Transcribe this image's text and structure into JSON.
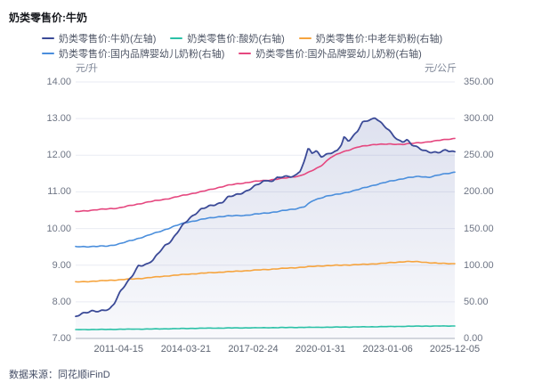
{
  "header": {
    "title": "奶类零售价:牛奶"
  },
  "footer": {
    "source": "数据来源：同花顺iFinD"
  },
  "chart_data": {
    "type": "line",
    "title": "奶类零售价:牛奶",
    "grid": true,
    "legend_position": "top",
    "x_range": [
      2009.42,
      2025.93
    ],
    "x_ticks": [
      {
        "label": "2011-04-15",
        "year": 2011.29
      },
      {
        "label": "2014-03-21",
        "year": 2014.22
      },
      {
        "label": "2017-02-24",
        "year": 2017.15
      },
      {
        "label": "2020-01-31",
        "year": 2020.08
      },
      {
        "label": "2023-01-06",
        "year": 2023.01
      },
      {
        "label": "2025-12-05",
        "year": 2025.93
      }
    ],
    "left_axis": {
      "unit": "元/升",
      "min": 7,
      "max": 14,
      "tick_labels": [
        "14.00",
        "13.00",
        "12.00",
        "11.00",
        "10.00",
        "9.00",
        "8.00",
        "7.00"
      ]
    },
    "right_axis": {
      "unit": "元/公斤",
      "min": 0,
      "max": 350,
      "tick_labels": [
        "350.00",
        "300.00",
        "250.00",
        "200.00",
        "150.00",
        "100.00",
        "50.00",
        "0.00"
      ]
    },
    "series": [
      {
        "name": "奶类零售价:牛奶(左轴)",
        "color": "#3b4a97",
        "axis": "left",
        "area": true,
        "noise": 0.028,
        "points": [
          [
            2009.42,
            7.58
          ],
          [
            2009.7,
            7.68
          ],
          [
            2010.1,
            7.76
          ],
          [
            2010.45,
            7.73
          ],
          [
            2010.9,
            7.8
          ],
          [
            2011.1,
            7.97
          ],
          [
            2011.37,
            8.29
          ],
          [
            2011.68,
            8.53
          ],
          [
            2011.88,
            8.7
          ],
          [
            2012.15,
            8.99
          ],
          [
            2012.55,
            9.03
          ],
          [
            2012.81,
            9.14
          ],
          [
            2013.05,
            9.35
          ],
          [
            2013.32,
            9.55
          ],
          [
            2013.59,
            9.67
          ],
          [
            2013.83,
            9.87
          ],
          [
            2014.1,
            10.1
          ],
          [
            2014.37,
            10.28
          ],
          [
            2014.61,
            10.4
          ],
          [
            2014.88,
            10.52
          ],
          [
            2015.3,
            10.62
          ],
          [
            2015.8,
            10.72
          ],
          [
            2016.05,
            10.85
          ],
          [
            2016.44,
            10.92
          ],
          [
            2016.83,
            11.02
          ],
          [
            2017.21,
            11.15
          ],
          [
            2017.6,
            11.28
          ],
          [
            2017.8,
            11.33
          ],
          [
            2018.0,
            11.28
          ],
          [
            2018.19,
            11.42
          ],
          [
            2018.4,
            11.36
          ],
          [
            2018.58,
            11.45
          ],
          [
            2018.8,
            11.38
          ],
          [
            2018.97,
            11.48
          ],
          [
            2019.2,
            11.55
          ],
          [
            2019.4,
            11.9
          ],
          [
            2019.55,
            12.18
          ],
          [
            2019.7,
            12.05
          ],
          [
            2019.9,
            12.12
          ],
          [
            2020.1,
            11.97
          ],
          [
            2020.3,
            12.02
          ],
          [
            2020.55,
            12.06
          ],
          [
            2020.8,
            12.1
          ],
          [
            2021.0,
            12.3
          ],
          [
            2021.11,
            12.5
          ],
          [
            2021.3,
            12.4
          ],
          [
            2021.5,
            12.52
          ],
          [
            2021.7,
            12.66
          ],
          [
            2021.9,
            12.88
          ],
          [
            2022.1,
            12.94
          ],
          [
            2022.3,
            12.98
          ],
          [
            2022.47,
            13.04
          ],
          [
            2022.6,
            12.96
          ],
          [
            2022.85,
            12.8
          ],
          [
            2023.1,
            12.64
          ],
          [
            2023.25,
            12.54
          ],
          [
            2023.45,
            12.42
          ],
          [
            2023.65,
            12.38
          ],
          [
            2023.85,
            12.42
          ],
          [
            2024.05,
            12.28
          ],
          [
            2024.4,
            12.18
          ],
          [
            2024.8,
            12.1
          ],
          [
            2025.2,
            12.06
          ],
          [
            2025.55,
            12.14
          ],
          [
            2025.93,
            12.1
          ]
        ]
      },
      {
        "name": "奶类零售价:酸奶(右轴)",
        "color": "#2bc1a7",
        "axis": "right",
        "area": false,
        "noise": 0.25,
        "points": [
          [
            2009.42,
            12.0
          ],
          [
            2011.29,
            12.5
          ],
          [
            2013.0,
            13.0
          ],
          [
            2015.0,
            14.0
          ],
          [
            2017.15,
            14.5
          ],
          [
            2019.0,
            15.0
          ],
          [
            2021.0,
            15.5
          ],
          [
            2023.0,
            16.2
          ],
          [
            2024.5,
            16.8
          ],
          [
            2025.93,
            17.0
          ]
        ]
      },
      {
        "name": "奶类零售价:中老年奶粉(右轴)",
        "color": "#f6a43e",
        "axis": "right",
        "area": false,
        "noise": 0.45,
        "points": [
          [
            2009.42,
            77.0
          ],
          [
            2010.5,
            78.5
          ],
          [
            2011.29,
            80.0
          ],
          [
            2012.3,
            82.0
          ],
          [
            2013.3,
            85.0
          ],
          [
            2014.22,
            87.5
          ],
          [
            2015.2,
            89.5
          ],
          [
            2016.05,
            91.0
          ],
          [
            2017.15,
            93.0
          ],
          [
            2018.2,
            95.0
          ],
          [
            2019.2,
            97.0
          ],
          [
            2020.08,
            99.0
          ],
          [
            2021.0,
            100.0
          ],
          [
            2022.0,
            101.0
          ],
          [
            2023.0,
            103.0
          ],
          [
            2023.8,
            105.0
          ],
          [
            2024.4,
            104.5
          ],
          [
            2025.2,
            102.5
          ],
          [
            2025.93,
            102.0
          ]
        ]
      },
      {
        "name": "奶类零售价:国内品牌婴幼儿奶粉(右轴)",
        "color": "#4a8edc",
        "axis": "right",
        "area": false,
        "noise": 0.6,
        "points": [
          [
            2009.42,
            125
          ],
          [
            2010.8,
            126
          ],
          [
            2011.3,
            129
          ],
          [
            2012.0,
            135
          ],
          [
            2012.5,
            140
          ],
          [
            2013.1,
            146
          ],
          [
            2013.7,
            153
          ],
          [
            2014.2,
            158
          ],
          [
            2015.0,
            163
          ],
          [
            2015.6,
            166
          ],
          [
            2016.0,
            167
          ],
          [
            2016.8,
            168
          ],
          [
            2017.4,
            170
          ],
          [
            2018.2,
            173
          ],
          [
            2019.0,
            177
          ],
          [
            2019.4,
            180
          ],
          [
            2019.75,
            188
          ],
          [
            2020.3,
            194
          ],
          [
            2020.9,
            197
          ],
          [
            2021.7,
            203
          ],
          [
            2022.5,
            210
          ],
          [
            2023.2,
            215
          ],
          [
            2023.8,
            219
          ],
          [
            2024.4,
            221
          ],
          [
            2024.8,
            220
          ],
          [
            2025.4,
            224
          ],
          [
            2025.93,
            227
          ]
        ]
      },
      {
        "name": "奶类零售价:国外品牌婴幼儿奶粉(右轴)",
        "color": "#e5477f",
        "axis": "right",
        "area": false,
        "noise": 0.55,
        "points": [
          [
            2009.42,
            173
          ],
          [
            2010.3,
            175.5
          ],
          [
            2011.29,
            178
          ],
          [
            2012.54,
            186
          ],
          [
            2013.5,
            191
          ],
          [
            2014.22,
            196
          ],
          [
            2015.0,
            201
          ],
          [
            2016.05,
            209
          ],
          [
            2017.15,
            214
          ],
          [
            2017.8,
            216
          ],
          [
            2018.58,
            219
          ],
          [
            2019.2,
            222
          ],
          [
            2019.6,
            227
          ],
          [
            2020.08,
            235
          ],
          [
            2020.53,
            247
          ],
          [
            2021.0,
            254
          ],
          [
            2021.69,
            261
          ],
          [
            2022.47,
            265
          ],
          [
            2023.0,
            265
          ],
          [
            2023.64,
            265
          ],
          [
            2024.42,
            267
          ],
          [
            2025.2,
            270
          ],
          [
            2025.93,
            273
          ]
        ]
      }
    ]
  }
}
